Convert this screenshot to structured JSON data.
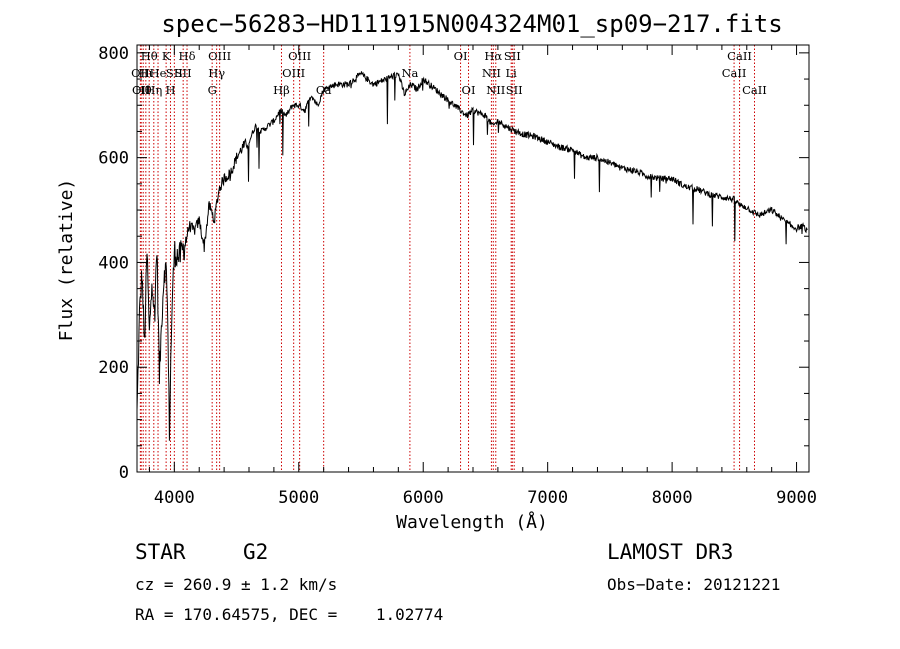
{
  "title": "spec−56283−HD111915N004324M01_sp09−217.fits",
  "footer": {
    "class_label": "STAR",
    "subclass": "G2",
    "survey": "LAMOST DR3",
    "cz": "cz = 260.9 ± 1.2 km/s",
    "obs_date": "Obs−Date: 20121221",
    "coords": "RA = 170.64575, DEC =    1.02774"
  },
  "chart_data": {
    "type": "line",
    "title": "spec−56283−HD111915N004324M01_sp09−217.fits",
    "xlabel": "Wavelength (Å)",
    "ylabel": "Flux (relative)",
    "xlim": [
      3700,
      9100
    ],
    "ylim": [
      0,
      815
    ],
    "x_ticks": [
      4000,
      5000,
      6000,
      7000,
      8000,
      9000
    ],
    "y_ticks": [
      0,
      200,
      400,
      600,
      800
    ],
    "minor_x_step": 200,
    "minor_y_step": 50,
    "grid": false,
    "line_color": "#000000",
    "marker_color": "#cc0000",
    "series": [
      {
        "x": [
          3700,
          3720,
          3740,
          3760,
          3780,
          3800,
          3820,
          3840,
          3860,
          3880,
          3900,
          3920,
          3940,
          3960,
          3980,
          4000,
          4040,
          4080,
          4120,
          4160,
          4200,
          4240,
          4280,
          4320,
          4360,
          4400,
          4450,
          4500,
          4550,
          4600,
          4650,
          4700,
          4750,
          4800,
          4850,
          4900,
          4950,
          5000,
          5050,
          5100,
          5150,
          5200,
          5300,
          5400,
          5500,
          5600,
          5700,
          5800,
          5850,
          5900,
          5950,
          6000,
          6100,
          6200,
          6300,
          6350,
          6400,
          6500,
          6560,
          6600,
          6700,
          6800,
          6900,
          7000,
          7100,
          7200,
          7300,
          7400,
          7500,
          7600,
          7700,
          7800,
          7900,
          8000,
          8100,
          8200,
          8300,
          8400,
          8500,
          8540,
          8600,
          8660,
          8700,
          8800,
          8900,
          8950,
          9000,
          9050,
          9100
        ],
        "y": [
          110,
          300,
          380,
          240,
          420,
          260,
          380,
          300,
          430,
          180,
          300,
          390,
          380,
          80,
          300,
          420,
          410,
          430,
          470,
          460,
          480,
          430,
          510,
          480,
          540,
          560,
          570,
          600,
          620,
          630,
          660,
          650,
          660,
          670,
          690,
          680,
          700,
          700,
          690,
          720,
          700,
          730,
          740,
          740,
          760,
          740,
          750,
          760,
          720,
          740,
          730,
          750,
          730,
          710,
          690,
          680,
          690,
          680,
          660,
          670,
          655,
          645,
          640,
          630,
          620,
          615,
          600,
          600,
          590,
          580,
          575,
          565,
          560,
          560,
          545,
          540,
          530,
          525,
          520,
          510,
          505,
          495,
          490,
          500,
          480,
          470,
          465,
          470,
          455
        ]
      }
    ],
    "line_markers": [
      {
        "wl": 3727,
        "label": "OII",
        "row": 2
      },
      {
        "wl": 3734,
        "label": "OII",
        "row": 3
      },
      {
        "wl": 3750,
        "label": "Hθ",
        "row": 3
      },
      {
        "wl": 3771,
        "label": "Hι",
        "row": 2
      },
      {
        "wl": 3798,
        "label": "Hθ",
        "row": 1
      },
      {
        "wl": 3835,
        "label": "Hη",
        "row": 3
      },
      {
        "wl": 3869,
        "label": "He",
        "row": 2
      },
      {
        "wl": 3934,
        "label": "K",
        "row": 1
      },
      {
        "wl": 3969,
        "label": "H",
        "row": 3
      },
      {
        "wl": 4000,
        "label": "SII",
        "row": 2
      },
      {
        "wl": 4102,
        "label": "Hδ",
        "row": 1
      },
      {
        "wl": 4071,
        "label": "SII",
        "row": 2
      },
      {
        "wl": 4304,
        "label": "G",
        "row": 3
      },
      {
        "wl": 4340,
        "label": "Hγ",
        "row": 2
      },
      {
        "wl": 4364,
        "label": "OIII",
        "row": 1
      },
      {
        "wl": 4861,
        "label": "Hβ",
        "row": 3
      },
      {
        "wl": 4959,
        "label": "OIII",
        "row": 2
      },
      {
        "wl": 5007,
        "label": "OIII",
        "row": 1
      },
      {
        "wl": 5200,
        "label": "Ca",
        "row": 3
      },
      {
        "wl": 5893,
        "label": "Na",
        "row": 2
      },
      {
        "wl": 6300,
        "label": "OI",
        "row": 1
      },
      {
        "wl": 6364,
        "label": "OI",
        "row": 3
      },
      {
        "wl": 6548,
        "label": "NII",
        "row": 2
      },
      {
        "wl": 6563,
        "label": "Hα",
        "row": 1
      },
      {
        "wl": 6583,
        "label": "NII",
        "row": 3
      },
      {
        "wl": 6707,
        "label": "Li",
        "row": 2
      },
      {
        "wl": 6716,
        "label": "SII",
        "row": 1
      },
      {
        "wl": 6731,
        "label": "SII",
        "row": 3
      },
      {
        "wl": 8498,
        "label": "CaII",
        "row": 2
      },
      {
        "wl": 8542,
        "label": "CaII",
        "row": 1
      },
      {
        "wl": 8662,
        "label": "CaII",
        "row": 3
      }
    ]
  }
}
